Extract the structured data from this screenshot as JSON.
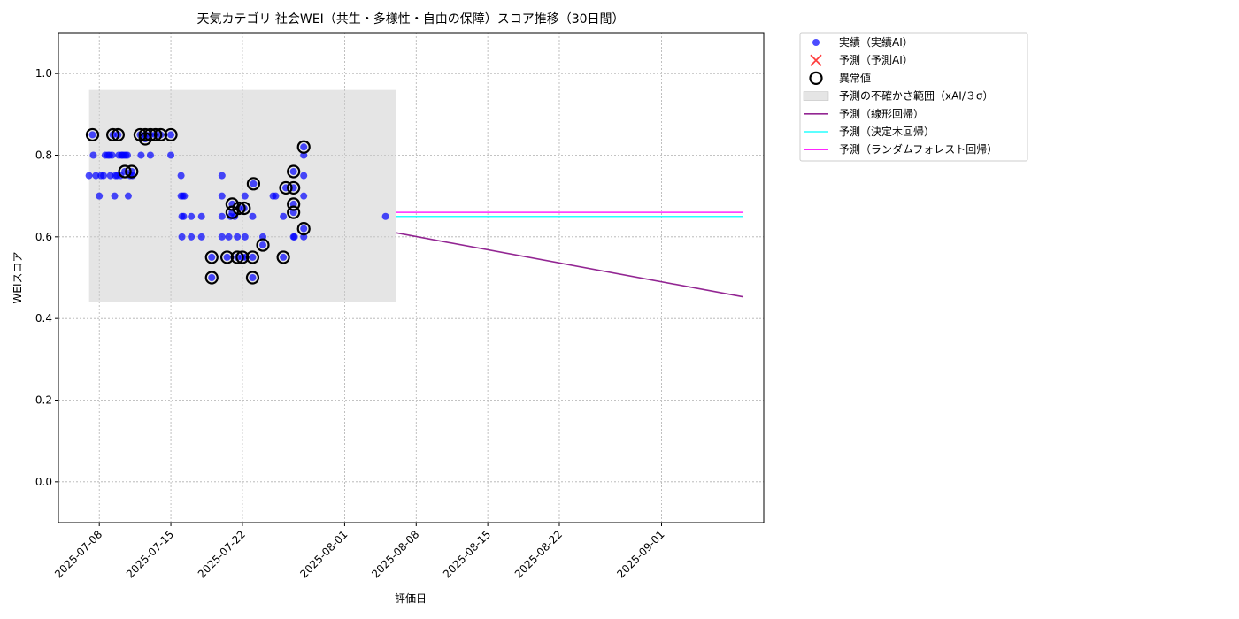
{
  "chart_data": {
    "type": "scatter",
    "title": "天気カテゴリ 社会WEI（共生・多様性・自由の保障）スコア推移（30日間）",
    "xlabel": "評価日",
    "ylabel": "WEIスコア",
    "xlim": [
      "2025-07-04",
      "2025-09-11"
    ],
    "ylim": [
      -0.1,
      1.1
    ],
    "x_ticks": [
      "2025-07-08",
      "2025-07-15",
      "2025-07-22",
      "2025-08-01",
      "2025-08-08",
      "2025-08-15",
      "2025-08-22",
      "2025-09-01"
    ],
    "y_ticks": [
      0.0,
      0.2,
      0.4,
      0.6,
      0.8,
      1.0
    ],
    "y_tick_labels": [
      "0.0",
      "0.2",
      "0.4",
      "0.6",
      "0.8",
      "1.0"
    ],
    "grid": true,
    "legend_position": "outside-top-right",
    "colors": {
      "actual": "#0000ff",
      "predicted": "#ff0000",
      "anomaly": "#000000",
      "band": "#cccccc",
      "linear": "#800080",
      "tree": "#00ffff",
      "forest": "#ff00ff"
    },
    "legend": [
      {
        "key": "actual",
        "label": "実績（実績AI）",
        "kind": "dot"
      },
      {
        "key": "predicted",
        "label": "予測（予測AI）",
        "kind": "x"
      },
      {
        "key": "anomaly",
        "label": "異常値",
        "kind": "ring"
      },
      {
        "key": "band",
        "label": "予測の不確かさ範囲（xAI/３σ）",
        "kind": "patch"
      },
      {
        "key": "linear",
        "label": "予測（線形回帰）",
        "kind": "line"
      },
      {
        "key": "tree",
        "label": "予測（決定木回帰）",
        "kind": "line"
      },
      {
        "key": "forest",
        "label": "予測（ランダムフォレスト回帰）",
        "kind": "line"
      }
    ],
    "uncertainty_band": {
      "x_start": "2025-07-07",
      "x_end": "2025-08-06",
      "y_low": 0.44,
      "y_high": 0.96
    },
    "actual_points": [
      {
        "x": "2025-07-07 00:00",
        "y": 0.75
      },
      {
        "x": "2025-07-07 08:00",
        "y": 0.85
      },
      {
        "x": "2025-07-07 10:00",
        "y": 0.8
      },
      {
        "x": "2025-07-07 16:00",
        "y": 0.75
      },
      {
        "x": "2025-07-08 00:00",
        "y": 0.7
      },
      {
        "x": "2025-07-08 04:00",
        "y": 0.75
      },
      {
        "x": "2025-07-08 10:00",
        "y": 0.75
      },
      {
        "x": "2025-07-08 14:00",
        "y": 0.8
      },
      {
        "x": "2025-07-08 20:00",
        "y": 0.8
      },
      {
        "x": "2025-07-09 00:00",
        "y": 0.8
      },
      {
        "x": "2025-07-09 02:00",
        "y": 0.75
      },
      {
        "x": "2025-07-09 06:00",
        "y": 0.8
      },
      {
        "x": "2025-07-09 08:00",
        "y": 0.85
      },
      {
        "x": "2025-07-09 12:00",
        "y": 0.7
      },
      {
        "x": "2025-07-09 14:00",
        "y": 0.75
      },
      {
        "x": "2025-07-09 18:00",
        "y": 0.75
      },
      {
        "x": "2025-07-09 20:00",
        "y": 0.85
      },
      {
        "x": "2025-07-09 22:00",
        "y": 0.8
      },
      {
        "x": "2025-07-10 02:00",
        "y": 0.75
      },
      {
        "x": "2025-07-10 04:00",
        "y": 0.8
      },
      {
        "x": "2025-07-10 06:00",
        "y": 0.8
      },
      {
        "x": "2025-07-10 10:00",
        "y": 0.8
      },
      {
        "x": "2025-07-10 12:00",
        "y": 0.76
      },
      {
        "x": "2025-07-10 14:00",
        "y": 0.8
      },
      {
        "x": "2025-07-10 18:00",
        "y": 0.8
      },
      {
        "x": "2025-07-10 20:00",
        "y": 0.7
      },
      {
        "x": "2025-07-11 00:00",
        "y": 0.75
      },
      {
        "x": "2025-07-11 04:00",
        "y": 0.76
      },
      {
        "x": "2025-07-11 06:00",
        "y": 0.75
      },
      {
        "x": "2025-07-12 00:00",
        "y": 0.85
      },
      {
        "x": "2025-07-12 02:00",
        "y": 0.8
      },
      {
        "x": "2025-07-12 12:00",
        "y": 0.85
      },
      {
        "x": "2025-07-12 12:00",
        "y": 0.84
      },
      {
        "x": "2025-07-13 00:00",
        "y": 0.85
      },
      {
        "x": "2025-07-13 00:00",
        "y": 0.8
      },
      {
        "x": "2025-07-13 12:00",
        "y": 0.85
      },
      {
        "x": "2025-07-14 00:00",
        "y": 0.85
      },
      {
        "x": "2025-07-15 00:00",
        "y": 0.8
      },
      {
        "x": "2025-07-15 00:00",
        "y": 0.85
      },
      {
        "x": "2025-07-16 00:00",
        "y": 0.75
      },
      {
        "x": "2025-07-16 00:00",
        "y": 0.7
      },
      {
        "x": "2025-07-16 02:00",
        "y": 0.65
      },
      {
        "x": "2025-07-16 02:00",
        "y": 0.6
      },
      {
        "x": "2025-07-16 04:00",
        "y": 0.7
      },
      {
        "x": "2025-07-16 06:00",
        "y": 0.65
      },
      {
        "x": "2025-07-16 08:00",
        "y": 0.7
      },
      {
        "x": "2025-07-17 00:00",
        "y": 0.65
      },
      {
        "x": "2025-07-17 00:00",
        "y": 0.6
      },
      {
        "x": "2025-07-18 00:00",
        "y": 0.65
      },
      {
        "x": "2025-07-18 00:00",
        "y": 0.6
      },
      {
        "x": "2025-07-19 00:00",
        "y": 0.55
      },
      {
        "x": "2025-07-19 00:00",
        "y": 0.5
      },
      {
        "x": "2025-07-20 00:00",
        "y": 0.75
      },
      {
        "x": "2025-07-20 00:00",
        "y": 0.7
      },
      {
        "x": "2025-07-20 00:00",
        "y": 0.65
      },
      {
        "x": "2025-07-20 00:00",
        "y": 0.6
      },
      {
        "x": "2025-07-20 12:00",
        "y": 0.55
      },
      {
        "x": "2025-07-20 16:00",
        "y": 0.6
      },
      {
        "x": "2025-07-20 20:00",
        "y": 0.65
      },
      {
        "x": "2025-07-21 00:00",
        "y": 0.66
      },
      {
        "x": "2025-07-21 00:00",
        "y": 0.68
      },
      {
        "x": "2025-07-21 06:00",
        "y": 0.65
      },
      {
        "x": "2025-07-21 12:00",
        "y": 0.6
      },
      {
        "x": "2025-07-21 12:00",
        "y": 0.55
      },
      {
        "x": "2025-07-21 16:00",
        "y": 0.67
      },
      {
        "x": "2025-07-22 00:00",
        "y": 0.55
      },
      {
        "x": "2025-07-22 04:00",
        "y": 0.67
      },
      {
        "x": "2025-07-22 06:00",
        "y": 0.6
      },
      {
        "x": "2025-07-22 06:00",
        "y": 0.7
      },
      {
        "x": "2025-07-22 08:00",
        "y": 0.55
      },
      {
        "x": "2025-07-23 00:00",
        "y": 0.65
      },
      {
        "x": "2025-07-23 00:00",
        "y": 0.55
      },
      {
        "x": "2025-07-23 00:00",
        "y": 0.5
      },
      {
        "x": "2025-07-23 02:00",
        "y": 0.73
      },
      {
        "x": "2025-07-24 00:00",
        "y": 0.6
      },
      {
        "x": "2025-07-24 00:00",
        "y": 0.58
      },
      {
        "x": "2025-07-25 00:00",
        "y": 0.7
      },
      {
        "x": "2025-07-25 06:00",
        "y": 0.7
      },
      {
        "x": "2025-07-26 00:00",
        "y": 0.65
      },
      {
        "x": "2025-07-26 00:00",
        "y": 0.55
      },
      {
        "x": "2025-07-26 06:00",
        "y": 0.72
      },
      {
        "x": "2025-07-27 00:00",
        "y": 0.76
      },
      {
        "x": "2025-07-27 00:00",
        "y": 0.72
      },
      {
        "x": "2025-07-27 00:00",
        "y": 0.68
      },
      {
        "x": "2025-07-27 00:00",
        "y": 0.66
      },
      {
        "x": "2025-07-27 00:00",
        "y": 0.6
      },
      {
        "x": "2025-07-27 02:00",
        "y": 0.6
      },
      {
        "x": "2025-07-28 00:00",
        "y": 0.82
      },
      {
        "x": "2025-07-28 00:00",
        "y": 0.8
      },
      {
        "x": "2025-07-28 00:00",
        "y": 0.75
      },
      {
        "x": "2025-07-28 00:00",
        "y": 0.7
      },
      {
        "x": "2025-07-28 00:00",
        "y": 0.62
      },
      {
        "x": "2025-07-28 00:00",
        "y": 0.6
      },
      {
        "x": "2025-08-05 00:00",
        "y": 0.65
      }
    ],
    "anomaly_points": [
      {
        "x": "2025-07-07 08:00",
        "y": 0.85
      },
      {
        "x": "2025-07-09 08:00",
        "y": 0.85
      },
      {
        "x": "2025-07-09 20:00",
        "y": 0.85
      },
      {
        "x": "2025-07-10 12:00",
        "y": 0.76
      },
      {
        "x": "2025-07-11 04:00",
        "y": 0.76
      },
      {
        "x": "2025-07-12 00:00",
        "y": 0.85
      },
      {
        "x": "2025-07-12 12:00",
        "y": 0.85
      },
      {
        "x": "2025-07-12 12:00",
        "y": 0.84
      },
      {
        "x": "2025-07-13 00:00",
        "y": 0.85
      },
      {
        "x": "2025-07-13 12:00",
        "y": 0.85
      },
      {
        "x": "2025-07-14 00:00",
        "y": 0.85
      },
      {
        "x": "2025-07-15 00:00",
        "y": 0.85
      },
      {
        "x": "2025-07-19 00:00",
        "y": 0.55
      },
      {
        "x": "2025-07-19 00:00",
        "y": 0.5
      },
      {
        "x": "2025-07-20 12:00",
        "y": 0.55
      },
      {
        "x": "2025-07-21 00:00",
        "y": 0.66
      },
      {
        "x": "2025-07-21 00:00",
        "y": 0.68
      },
      {
        "x": "2025-07-21 12:00",
        "y": 0.55
      },
      {
        "x": "2025-07-21 16:00",
        "y": 0.67
      },
      {
        "x": "2025-07-22 00:00",
        "y": 0.55
      },
      {
        "x": "2025-07-22 04:00",
        "y": 0.67
      },
      {
        "x": "2025-07-23 00:00",
        "y": 0.55
      },
      {
        "x": "2025-07-23 00:00",
        "y": 0.5
      },
      {
        "x": "2025-07-23 02:00",
        "y": 0.73
      },
      {
        "x": "2025-07-24 00:00",
        "y": 0.58
      },
      {
        "x": "2025-07-26 00:00",
        "y": 0.55
      },
      {
        "x": "2025-07-26 06:00",
        "y": 0.72
      },
      {
        "x": "2025-07-27 00:00",
        "y": 0.76
      },
      {
        "x": "2025-07-27 00:00",
        "y": 0.72
      },
      {
        "x": "2025-07-27 00:00",
        "y": 0.68
      },
      {
        "x": "2025-07-27 00:00",
        "y": 0.66
      },
      {
        "x": "2025-07-28 00:00",
        "y": 0.82
      },
      {
        "x": "2025-07-28 00:00",
        "y": 0.62
      }
    ],
    "predicted_points": [],
    "series": [
      {
        "key": "linear",
        "x": [
          "2025-08-06",
          "2025-09-09"
        ],
        "y": [
          0.61,
          0.453
        ]
      },
      {
        "key": "tree",
        "x": [
          "2025-08-06",
          "2025-09-09"
        ],
        "y": [
          0.65,
          0.65
        ]
      },
      {
        "key": "forest",
        "x": [
          "2025-08-06",
          "2025-09-09"
        ],
        "y": [
          0.66,
          0.66
        ]
      }
    ]
  }
}
